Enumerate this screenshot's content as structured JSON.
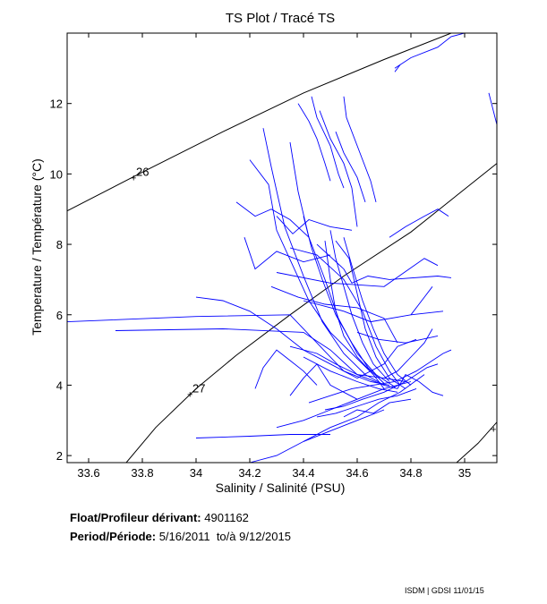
{
  "chart_data": {
    "type": "line",
    "title": "TS Plot / Tracé TS",
    "xlabel": "Salinity / Salinité (PSU)",
    "ylabel": "Temperature / Température (°C)",
    "xlim": [
      33.52,
      35.12
    ],
    "ylim": [
      1.8,
      14
    ],
    "xticks": [
      "33.6",
      "33.8",
      "34",
      "34.2",
      "34.4",
      "34.6",
      "34.8",
      "35"
    ],
    "yticks": [
      "2",
      "4",
      "6",
      "8",
      "10",
      "12"
    ],
    "grid": false,
    "density_contours": [
      {
        "label": "26",
        "label_at": [
          33.77,
          9.9
        ],
        "points": [
          [
            33.52,
            8.95
          ],
          [
            33.8,
            10.05
          ],
          [
            34.1,
            11.2
          ],
          [
            34.4,
            12.3
          ],
          [
            34.7,
            13.25
          ],
          [
            34.95,
            14.0
          ]
        ]
      },
      {
        "label": "27",
        "label_at": [
          33.98,
          3.75
        ],
        "points": [
          [
            33.74,
            1.8
          ],
          [
            33.85,
            2.8
          ],
          [
            34.0,
            3.9
          ],
          [
            34.15,
            4.85
          ],
          [
            34.35,
            6.0
          ],
          [
            34.55,
            7.1
          ],
          [
            34.8,
            8.35
          ],
          [
            35.12,
            10.3
          ]
        ]
      },
      {
        "label": "2",
        "label_at": [
          35.11,
          2.75
        ],
        "points": [
          [
            34.97,
            1.8
          ],
          [
            35.05,
            2.35
          ],
          [
            35.12,
            2.95
          ]
        ]
      }
    ],
    "series": [
      {
        "values": [
          [
            33.52,
            5.8
          ],
          [
            34.0,
            5.95
          ],
          [
            34.35,
            6.0
          ],
          [
            34.45,
            5.2
          ],
          [
            34.55,
            4.4
          ],
          [
            34.65,
            4.1
          ],
          [
            34.72,
            4.0
          ]
        ]
      },
      {
        "values": [
          [
            33.7,
            5.55
          ],
          [
            34.1,
            5.6
          ],
          [
            34.4,
            5.5
          ],
          [
            34.5,
            5.0
          ],
          [
            34.6,
            4.3
          ],
          [
            34.7,
            4.0
          ],
          [
            34.75,
            3.9
          ]
        ]
      },
      {
        "values": [
          [
            34.25,
            11.3
          ],
          [
            34.28,
            10.2
          ],
          [
            34.33,
            8.5
          ],
          [
            34.4,
            7.1
          ],
          [
            34.47,
            5.8
          ],
          [
            34.55,
            4.9
          ],
          [
            34.63,
            4.3
          ],
          [
            34.7,
            4.0
          ]
        ]
      },
      {
        "values": [
          [
            34.35,
            10.9
          ],
          [
            34.38,
            9.5
          ],
          [
            34.42,
            8.2
          ],
          [
            34.48,
            7.0
          ],
          [
            34.53,
            5.9
          ],
          [
            34.6,
            4.9
          ],
          [
            34.67,
            4.3
          ],
          [
            34.74,
            3.95
          ]
        ]
      },
      {
        "values": [
          [
            34.5,
            8.4
          ],
          [
            34.52,
            7.6
          ],
          [
            34.55,
            6.8
          ],
          [
            34.58,
            6.0
          ],
          [
            34.62,
            5.2
          ],
          [
            34.66,
            4.6
          ],
          [
            34.72,
            4.1
          ]
        ]
      },
      {
        "values": [
          [
            34.52,
            8.1
          ],
          [
            34.57,
            7.6
          ],
          [
            34.6,
            6.6
          ],
          [
            34.63,
            5.6
          ],
          [
            34.67,
            4.8
          ],
          [
            34.72,
            4.2
          ],
          [
            34.78,
            3.9
          ]
        ]
      },
      {
        "values": [
          [
            34.4,
            8.8
          ],
          [
            34.43,
            7.9
          ],
          [
            34.47,
            7.0
          ],
          [
            34.52,
            6.0
          ],
          [
            34.58,
            5.2
          ],
          [
            34.64,
            4.5
          ],
          [
            34.7,
            4.05
          ]
        ]
      },
      {
        "values": [
          [
            34.55,
            8.2
          ],
          [
            34.58,
            7.4
          ],
          [
            34.62,
            6.4
          ],
          [
            34.66,
            5.6
          ],
          [
            34.7,
            4.9
          ],
          [
            34.75,
            4.3
          ],
          [
            34.8,
            4.0
          ]
        ]
      },
      {
        "values": [
          [
            34.35,
            7.9
          ],
          [
            34.45,
            7.7
          ],
          [
            34.55,
            7.0
          ],
          [
            34.62,
            6.1
          ],
          [
            34.67,
            5.1
          ],
          [
            34.72,
            4.4
          ],
          [
            34.76,
            4.0
          ]
        ]
      },
      {
        "values": [
          [
            34.28,
            6.8
          ],
          [
            34.38,
            6.5
          ],
          [
            34.48,
            6.3
          ],
          [
            34.6,
            6.2
          ],
          [
            34.7,
            5.9
          ],
          [
            34.75,
            5.2
          ]
        ]
      },
      {
        "values": [
          [
            34.2,
            10.4
          ],
          [
            34.27,
            9.7
          ],
          [
            34.3,
            8.4
          ],
          [
            34.36,
            7.4
          ],
          [
            34.42,
            6.4
          ],
          [
            34.5,
            5.5
          ],
          [
            34.58,
            4.9
          ],
          [
            34.66,
            4.3
          ]
        ]
      },
      {
        "values": [
          [
            34.45,
            8.0
          ],
          [
            34.55,
            7.3
          ],
          [
            34.58,
            6.9
          ],
          [
            34.64,
            7.1
          ],
          [
            34.72,
            7.0
          ],
          [
            34.9,
            7.1
          ],
          [
            34.95,
            7.05
          ]
        ]
      },
      {
        "values": [
          [
            34.3,
            7.2
          ],
          [
            34.5,
            6.9
          ],
          [
            34.7,
            6.8
          ],
          [
            34.85,
            7.6
          ],
          [
            34.9,
            7.4
          ]
        ]
      },
      {
        "values": [
          [
            34.4,
            6.4
          ],
          [
            34.55,
            6.1
          ],
          [
            34.65,
            5.8
          ],
          [
            34.8,
            6.0
          ],
          [
            34.92,
            6.1
          ]
        ]
      },
      {
        "values": [
          [
            34.18,
            8.2
          ],
          [
            34.22,
            7.3
          ],
          [
            34.3,
            7.8
          ],
          [
            34.4,
            7.5
          ],
          [
            34.5,
            7.7
          ]
        ]
      },
      {
        "values": [
          [
            34.3,
            8.8
          ],
          [
            34.36,
            8.3
          ],
          [
            34.42,
            8.7
          ],
          [
            34.5,
            8.5
          ],
          [
            34.58,
            8.4
          ]
        ]
      },
      {
        "values": [
          [
            34.48,
            8.1
          ],
          [
            34.5,
            7.0
          ],
          [
            34.52,
            6.1
          ],
          [
            34.55,
            5.4
          ],
          [
            34.6,
            4.8
          ],
          [
            34.66,
            4.3
          ],
          [
            34.7,
            3.9
          ]
        ]
      },
      {
        "values": [
          [
            34.0,
            6.5
          ],
          [
            34.1,
            6.4
          ],
          [
            34.2,
            6.1
          ],
          [
            34.3,
            5.6
          ],
          [
            34.4,
            5.0
          ],
          [
            34.5,
            4.6
          ],
          [
            34.6,
            4.2
          ]
        ]
      },
      {
        "values": [
          [
            34.35,
            5.1
          ],
          [
            34.45,
            4.9
          ],
          [
            34.52,
            4.6
          ],
          [
            34.6,
            4.3
          ],
          [
            34.7,
            4.2
          ],
          [
            34.78,
            4.1
          ]
        ]
      },
      {
        "values": [
          [
            34.4,
            4.8
          ],
          [
            34.5,
            4.4
          ],
          [
            34.6,
            4.1
          ],
          [
            34.68,
            3.9
          ],
          [
            34.75,
            3.8
          ]
        ]
      },
      {
        "values": [
          [
            34.48,
            3.3
          ],
          [
            34.55,
            3.4
          ],
          [
            34.62,
            3.6
          ],
          [
            34.7,
            3.8
          ],
          [
            34.78,
            4.1
          ],
          [
            34.86,
            4.5
          ],
          [
            34.9,
            4.6
          ]
        ]
      },
      {
        "values": [
          [
            34.45,
            3.1
          ],
          [
            34.52,
            3.2
          ],
          [
            34.6,
            3.4
          ],
          [
            34.68,
            3.6
          ],
          [
            34.75,
            3.7
          ],
          [
            34.82,
            3.9
          ]
        ]
      },
      {
        "values": [
          [
            34.4,
            2.4
          ],
          [
            34.5,
            2.8
          ],
          [
            34.6,
            3.1
          ],
          [
            34.68,
            3.5
          ],
          [
            34.76,
            3.8
          ],
          [
            34.85,
            4.3
          ]
        ]
      },
      {
        "values": [
          [
            34.3,
            2.8
          ],
          [
            34.4,
            3.0
          ],
          [
            34.5,
            3.3
          ],
          [
            34.6,
            3.6
          ],
          [
            34.7,
            3.9
          ],
          [
            34.8,
            4.1
          ]
        ]
      },
      {
        "values": [
          [
            34.42,
            3.5
          ],
          [
            34.5,
            3.7
          ],
          [
            34.58,
            3.9
          ],
          [
            34.66,
            4.0
          ],
          [
            34.74,
            4.1
          ],
          [
            34.82,
            4.4
          ],
          [
            34.92,
            4.9
          ],
          [
            34.95,
            5.0
          ]
        ]
      },
      {
        "values": [
          [
            34.2,
            1.8
          ],
          [
            34.3,
            2.0
          ],
          [
            34.4,
            2.4
          ],
          [
            34.5,
            2.7
          ],
          [
            34.6,
            3.0
          ],
          [
            34.7,
            3.3
          ]
        ]
      },
      {
        "values": [
          [
            34.0,
            2.5
          ],
          [
            34.2,
            2.55
          ],
          [
            34.35,
            2.6
          ],
          [
            34.5,
            2.6
          ]
        ]
      },
      {
        "values": [
          [
            34.22,
            3.9
          ],
          [
            34.25,
            4.5
          ],
          [
            34.3,
            5.0
          ],
          [
            34.35,
            4.7
          ],
          [
            34.4,
            4.4
          ],
          [
            34.45,
            4.0
          ]
        ]
      },
      {
        "values": [
          [
            34.35,
            3.7
          ],
          [
            34.4,
            4.2
          ],
          [
            34.45,
            4.6
          ],
          [
            34.5,
            4.0
          ],
          [
            34.55,
            3.8
          ],
          [
            34.6,
            3.6
          ]
        ]
      },
      {
        "values": [
          [
            34.7,
            4.2
          ],
          [
            34.75,
            4.4
          ],
          [
            34.8,
            4.8
          ],
          [
            34.85,
            5.2
          ],
          [
            34.88,
            5.6
          ]
        ]
      },
      {
        "values": [
          [
            34.75,
            3.9
          ],
          [
            34.78,
            4.3
          ],
          [
            34.83,
            4.1
          ],
          [
            34.88,
            3.8
          ],
          [
            34.92,
            3.7
          ]
        ]
      },
      {
        "values": [
          [
            34.6,
            4.2
          ],
          [
            34.7,
            4.6
          ],
          [
            34.75,
            5.1
          ],
          [
            34.82,
            5.3
          ]
        ]
      },
      {
        "values": [
          [
            34.38,
            12.0
          ],
          [
            34.42,
            11.5
          ],
          [
            34.45,
            11.0
          ],
          [
            34.48,
            10.3
          ],
          [
            34.5,
            9.8
          ]
        ]
      },
      {
        "values": [
          [
            34.43,
            12.2
          ],
          [
            34.45,
            11.6
          ],
          [
            34.5,
            10.8
          ],
          [
            34.53,
            10.0
          ],
          [
            34.55,
            9.6
          ]
        ]
      },
      {
        "values": [
          [
            34.46,
            11.8
          ],
          [
            34.5,
            11.0
          ],
          [
            34.55,
            10.3
          ],
          [
            34.58,
            9.6
          ],
          [
            34.6,
            8.5
          ]
        ]
      },
      {
        "values": [
          [
            34.52,
            11.2
          ],
          [
            34.55,
            10.6
          ],
          [
            34.6,
            9.9
          ],
          [
            34.63,
            9.2
          ]
        ]
      },
      {
        "values": [
          [
            34.55,
            12.2
          ],
          [
            34.56,
            11.6
          ],
          [
            34.6,
            10.8
          ],
          [
            34.65,
            9.8
          ],
          [
            34.67,
            9.2
          ]
        ]
      },
      {
        "values": [
          [
            34.74,
            13.0
          ],
          [
            34.8,
            13.3
          ],
          [
            34.9,
            13.6
          ],
          [
            34.95,
            13.9
          ],
          [
            35.0,
            14.0
          ]
        ]
      },
      {
        "values": [
          [
            34.74,
            12.9
          ],
          [
            34.76,
            13.1
          ]
        ]
      },
      {
        "values": [
          [
            35.09,
            12.3
          ],
          [
            35.1,
            12.0
          ],
          [
            35.11,
            11.7
          ],
          [
            35.12,
            11.4
          ]
        ]
      },
      {
        "values": [
          [
            34.15,
            9.2
          ],
          [
            34.22,
            8.8
          ],
          [
            34.28,
            9.0
          ],
          [
            34.35,
            8.7
          ],
          [
            34.42,
            8.2
          ]
        ]
      },
      {
        "values": [
          [
            34.72,
            8.2
          ],
          [
            34.78,
            8.5
          ],
          [
            34.85,
            8.8
          ],
          [
            34.9,
            9.0
          ],
          [
            34.94,
            8.8
          ]
        ]
      },
      {
        "values": [
          [
            34.8,
            6.0
          ],
          [
            34.85,
            6.5
          ],
          [
            34.88,
            6.8
          ]
        ]
      },
      {
        "values": [
          [
            34.6,
            5.5
          ],
          [
            34.68,
            5.3
          ],
          [
            34.78,
            5.2
          ],
          [
            34.9,
            5.4
          ]
        ]
      },
      {
        "values": [
          [
            34.55,
            3.1
          ],
          [
            34.6,
            3.3
          ],
          [
            34.66,
            3.2
          ],
          [
            34.72,
            3.5
          ],
          [
            34.8,
            3.6
          ]
        ]
      }
    ]
  },
  "info": {
    "float_label": "Float/Profileur dérivant:",
    "float_id": "4901162",
    "period_label": "Period/Période:",
    "start_date": "5/16/2011",
    "to_label": "to/à",
    "end_date": "9/12/2015"
  },
  "footer": "ISDM | GDSI  11/01/15"
}
